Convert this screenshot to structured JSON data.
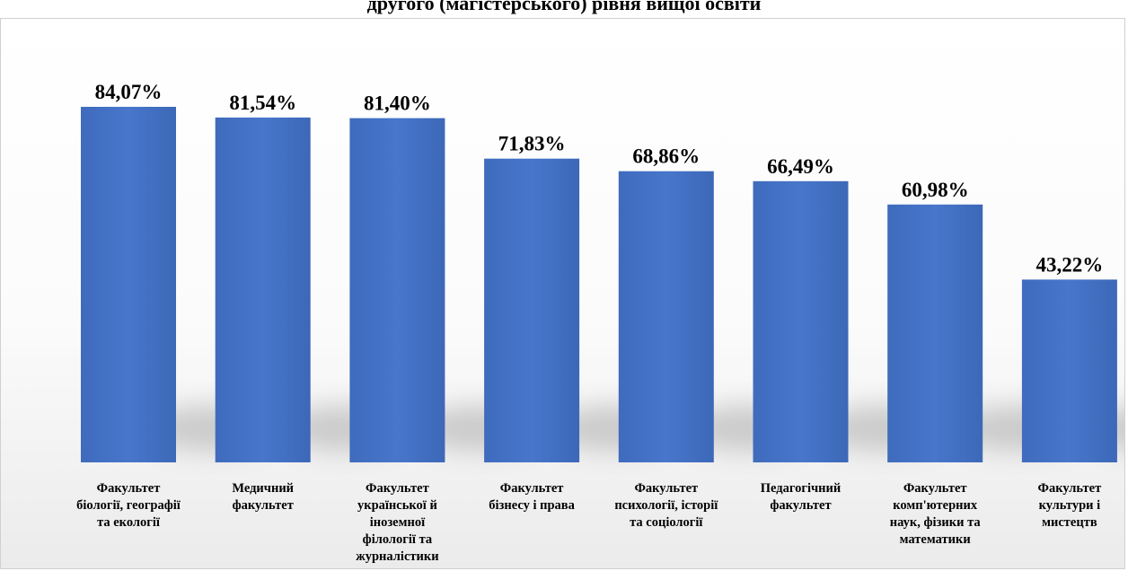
{
  "chart_data": {
    "type": "bar",
    "title": "другого (магістерського) рівня вищої освіти",
    "xlabel": "",
    "ylabel": "",
    "ylim": [
      0,
      100
    ],
    "grid": false,
    "legend": "none",
    "bar_color": "#4472C4",
    "categories": [
      "Факультет біології, географії та екології",
      "Медичний факультет",
      "Факультет української й іноземної філології та журналістики",
      "Факультет бізнесу і права",
      "Факультет психології, історії та соціології",
      "Педагогічний факультет",
      "Факультет комп'ютерних наук, фізики та математики",
      "Факультет культури і мистецтв"
    ],
    "category_lines": [
      [
        "Факультет",
        "біології, географії",
        "та екології"
      ],
      [
        "Медичний",
        "факультет"
      ],
      [
        "Факультет",
        "української й",
        "іноземної",
        "філології та",
        "журналістики"
      ],
      [
        "Факультет",
        "бізнесу і права"
      ],
      [
        "Факультет",
        "психології, історії",
        "та соціології"
      ],
      [
        "Педагогічний",
        "факультет"
      ],
      [
        "Факультет",
        "комп'ютерних",
        "наук, фізики та",
        "математики"
      ],
      [
        "Факультет",
        "культури і",
        "мистецтв"
      ]
    ],
    "values": [
      84.07,
      81.54,
      81.4,
      71.83,
      68.86,
      66.49,
      60.98,
      43.22
    ],
    "data_labels": [
      "84,07%",
      "81,54%",
      "81,40%",
      "71,83%",
      "68,86%",
      "66,49%",
      "60,98%",
      "43,22%"
    ]
  }
}
